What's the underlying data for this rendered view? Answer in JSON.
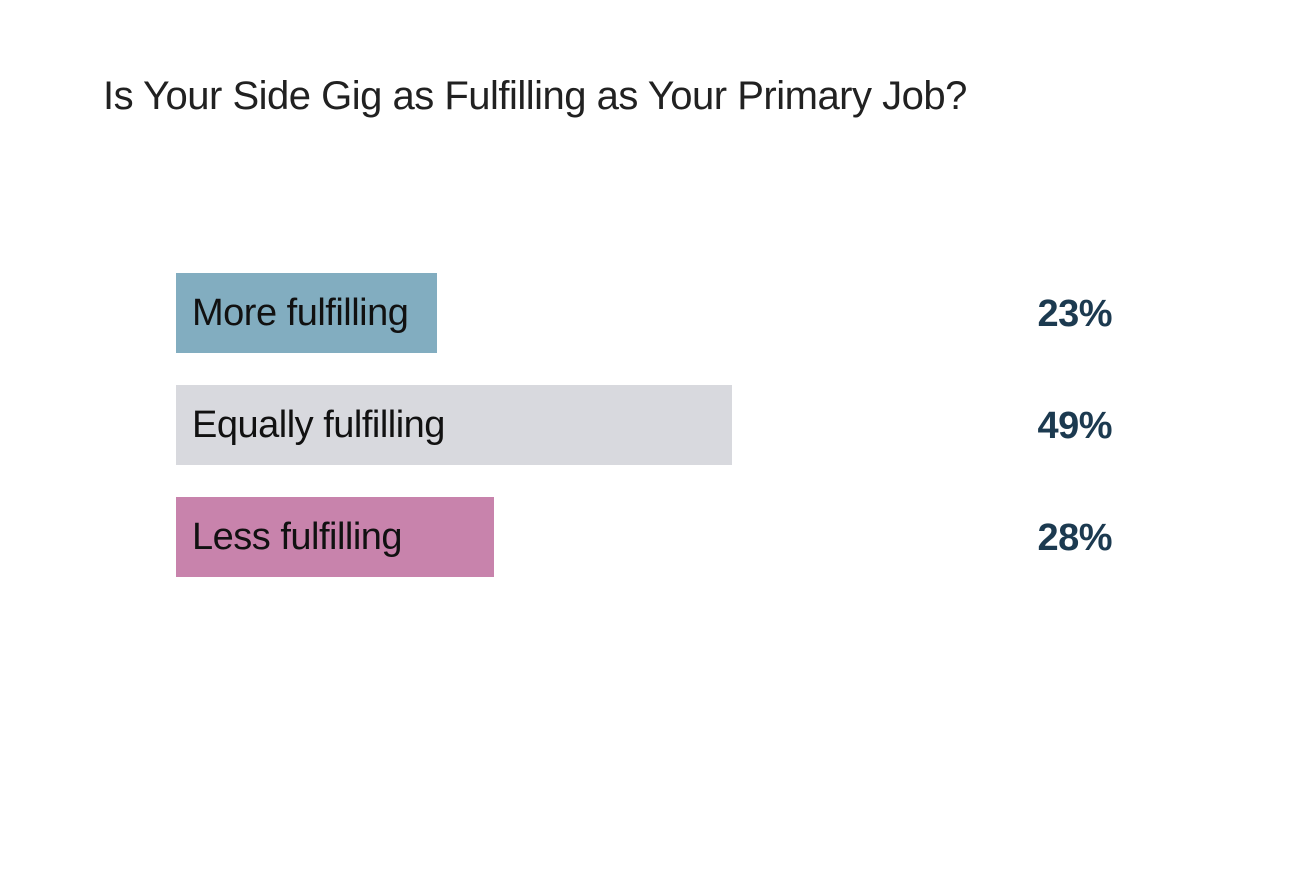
{
  "chart_data": {
    "type": "bar",
    "orientation": "horizontal",
    "title": "Is Your Side Gig as Fulfilling as Your Primary Job?",
    "categories": [
      "More fulfilling",
      "Equally fulfilling",
      "Less fulfilling"
    ],
    "values": [
      23,
      49,
      28
    ],
    "value_labels": [
      "23%",
      "49%",
      "28%"
    ],
    "unit": "%",
    "xlim": [
      0,
      100
    ],
    "grid": false,
    "legend": false,
    "bar_colors": [
      "#82adc0",
      "#d8d9de",
      "#c883ac"
    ],
    "colors": {
      "title_text": "#212121",
      "bar_label_text": "#111111",
      "value_label_text": "#1c3a50",
      "background": "#ffffff"
    }
  }
}
